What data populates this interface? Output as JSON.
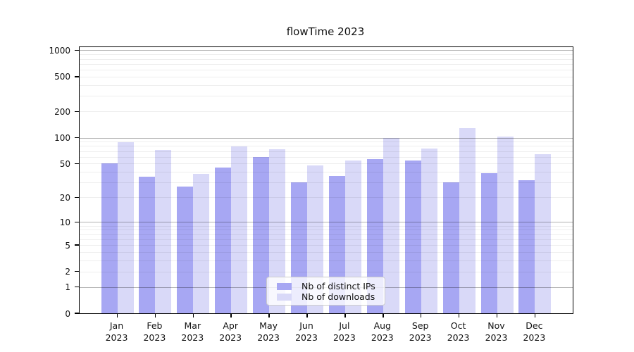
{
  "title": "flowTime 2023",
  "colors": {
    "ips_bar": "#a7a7f3",
    "downloads_bar": "#d9d9f8",
    "spine": "#000000",
    "grid_major": "rgba(0,0,0,0.30)",
    "grid_minor": "rgba(0,0,0,0.065)",
    "legend_border": "#cccccc"
  },
  "legend": {
    "items": [
      {
        "label": "Nb of distinct IPs"
      },
      {
        "label": "Nb of downloads"
      }
    ]
  },
  "y_axis": {
    "tick_labels": [
      "1000",
      "500",
      "200",
      "100",
      "50",
      "20",
      "10",
      "5",
      "2",
      "1",
      "0"
    ]
  },
  "x_axis": {
    "year": "2023",
    "months": [
      "Jan",
      "Feb",
      "Mar",
      "Apr",
      "May",
      "Jun",
      "Jul",
      "Aug",
      "Sep",
      "Oct",
      "Nov",
      "Dec"
    ]
  },
  "chart_data": {
    "type": "bar",
    "title": "flowTime 2023",
    "categories": [
      "Jan 2023",
      "Feb 2023",
      "Mar 2023",
      "Apr 2023",
      "May 2023",
      "Jun 2023",
      "Jul 2023",
      "Aug 2023",
      "Sep 2023",
      "Oct 2023",
      "Nov 2023",
      "Dec 2023"
    ],
    "series": [
      {
        "name": "Nb of distinct IPs",
        "color": "#a7a7f3",
        "values": [
          50,
          35,
          27,
          45,
          60,
          30,
          36,
          57,
          54,
          30,
          39,
          32
        ]
      },
      {
        "name": "Nb of downloads",
        "color": "#d9d9f8",
        "values": [
          88,
          72,
          38,
          79,
          73,
          48,
          54,
          100,
          75,
          128,
          102,
          64
        ]
      }
    ],
    "xlabel": "",
    "ylabel": "",
    "yscale": "log1p",
    "y_ticks": [
      0,
      1,
      2,
      5,
      10,
      20,
      50,
      100,
      200,
      500,
      1000
    ],
    "ylim": [
      0,
      1100
    ],
    "grid": true,
    "grid_major_at": [
      1,
      10,
      100,
      1000
    ],
    "legend_position": "lower center"
  }
}
